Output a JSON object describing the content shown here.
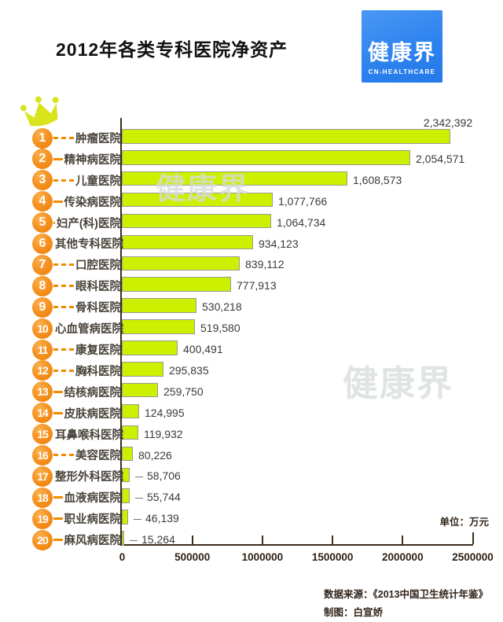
{
  "title": "2012年各类专科医院净资产",
  "logo": {
    "brand": "健康界",
    "subtext": "CN-HEALTHCARE"
  },
  "watermark_text": "健康界",
  "unit_note": "单位：万元",
  "footer": {
    "source_line": "数据来源：《2013中国卫生统计年鉴》",
    "credit_line": "制图：白宣娇"
  },
  "colors": {
    "bar_fill": "#ccf000",
    "bar_border": "#9a9a92",
    "rank_badge_orange": "#f08200",
    "leader_dash_orange": "#f08a00",
    "axis_brown": "#3e2c1c",
    "category_label_gray": "#4a443c",
    "logo_blue_top": "#4a98f4",
    "logo_blue_bottom": "#2478e8",
    "crown_yellow_green": "#d9e41f"
  },
  "chart_data": {
    "type": "bar",
    "orientation": "horizontal",
    "title": "2012年各类专科医院净资产",
    "unit": "万元",
    "xlim": [
      0,
      2500000
    ],
    "x_tick_labels": [
      "0",
      "500000",
      "1000000",
      "1500000",
      "2000000",
      "2500000"
    ],
    "x_tick_values": [
      0,
      500000,
      1000000,
      1500000,
      2000000,
      2500000
    ],
    "grid": false,
    "legend": false,
    "ranks": [
      1,
      2,
      3,
      4,
      5,
      6,
      7,
      8,
      9,
      10,
      11,
      12,
      13,
      14,
      15,
      16,
      17,
      18,
      19,
      20
    ],
    "categories": [
      "肿瘤医院",
      "精神病医院",
      "儿童医院",
      "传染病医院",
      "妇产(科)医院",
      "其他专科医院",
      "口腔医院",
      "眼科医院",
      "骨科医院",
      "心血管病医院",
      "康复医院",
      "胸科医院",
      "结核病医院",
      "皮肤病医院",
      "耳鼻喉科医院",
      "美容医院",
      "整形外科医院",
      "血液病医院",
      "职业病医院",
      "麻风病医院"
    ],
    "values": [
      2342392,
      2054571,
      1608573,
      1077766,
      1064734,
      934123,
      839112,
      777913,
      530218,
      519580,
      400491,
      295835,
      259750,
      124995,
      119932,
      80226,
      58706,
      55744,
      46139,
      15264
    ],
    "value_labels": [
      "2,342,392",
      "2,054,571",
      "1,608,573",
      "1,077,766",
      "1,064,734",
      "934,123",
      "839,112",
      "777,913",
      "530,218",
      "519,580",
      "400,491",
      "295,835",
      "259,750",
      "124,995",
      "119,932",
      "80,226",
      "58,706",
      "55,744",
      "46,139",
      "15,264"
    ]
  }
}
